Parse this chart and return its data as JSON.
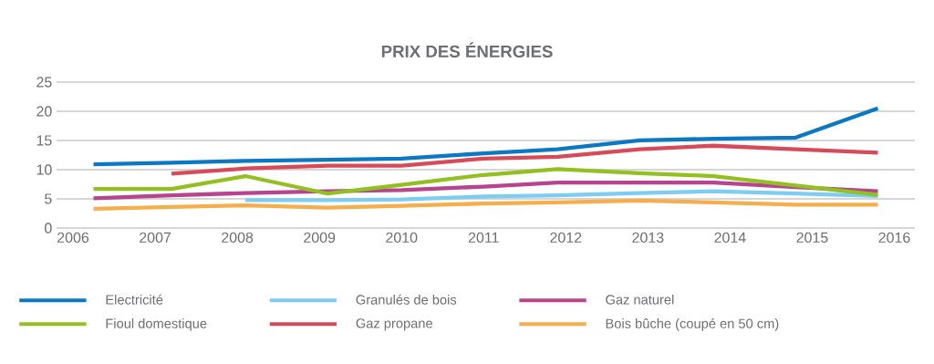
{
  "chart_data": {
    "type": "line",
    "title": "PRIX DES ÉNERGIES",
    "x": [
      2006.25,
      2007.2,
      2008.1,
      2009.1,
      2010,
      2011,
      2011.9,
      2012.9,
      2013.8,
      2014.8,
      2015.8
    ],
    "xlim": [
      2005.8,
      2016.25
    ],
    "xticks": [
      2006,
      2007,
      2008,
      2009,
      2010,
      2011,
      2012,
      2013,
      2014,
      2015,
      2016
    ],
    "ylim": [
      0,
      25
    ],
    "yticks": [
      0,
      5,
      10,
      15,
      20,
      25
    ],
    "grid": "y",
    "legend": "bottom",
    "marker": "none",
    "line_style": "solid",
    "series": [
      {
        "name": "Electricité",
        "color": "#0a78c2",
        "values": [
          10.9,
          11.2,
          11.5,
          11.7,
          11.9,
          12.8,
          13.5,
          15.0,
          15.3,
          15.5,
          20.5
        ]
      },
      {
        "name": "Granulés de bois",
        "color": "#7dcdf2",
        "values": [
          null,
          null,
          4.8,
          4.8,
          4.9,
          5.4,
          5.6,
          6.0,
          6.3,
          5.9,
          5.5
        ]
      },
      {
        "name": "Gaz naturel",
        "color": "#b8448f",
        "values": [
          5.1,
          5.6,
          6.0,
          6.3,
          6.5,
          7.1,
          7.8,
          7.8,
          7.8,
          7.0,
          6.3
        ]
      },
      {
        "name": "Fioul domestique",
        "color": "#92c020",
        "values": [
          6.7,
          6.7,
          8.9,
          5.9,
          7.4,
          9.1,
          10.1,
          9.4,
          8.9,
          7.3,
          5.7
        ]
      },
      {
        "name": "Gaz propane",
        "color": "#d64b5a",
        "values": [
          null,
          9.3,
          10.2,
          10.7,
          10.7,
          11.9,
          12.2,
          13.5,
          14.1,
          13.5,
          12.9
        ]
      },
      {
        "name": "Bois bûche (coupé en 50 cm)",
        "color": "#f6ad4b",
        "values": [
          3.3,
          3.6,
          3.9,
          3.5,
          3.8,
          4.2,
          4.4,
          4.7,
          4.4,
          4.0,
          4.0
        ]
      }
    ]
  }
}
